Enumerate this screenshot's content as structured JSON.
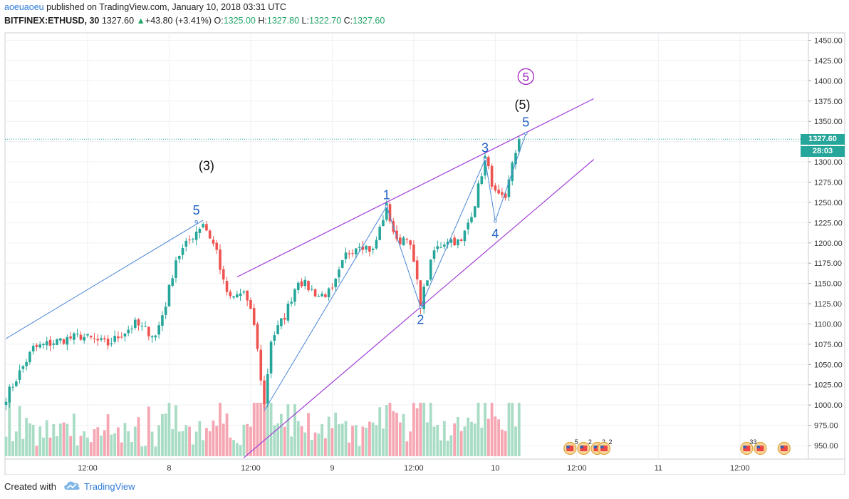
{
  "header": {
    "author": "aoeuaoeu",
    "published": "published on TradingView.com, January 10, 2018 03:31 UTC",
    "symbol": "BITFINEX:ETHUSD, 30",
    "last": "1327.60",
    "change": "+43.80 (+3.41%)",
    "open_label": "O:",
    "open": "1325.00",
    "high_label": "H:",
    "high": "1327.80",
    "low_label": "L:",
    "low": "1322.70",
    "close_label": "C:",
    "close": "1327.60"
  },
  "footer": {
    "created": "Created with",
    "brand": "TradingView"
  },
  "price_tag": {
    "value": "1327.60",
    "countdown": "28:03"
  },
  "colors": {
    "up": "#26a69a",
    "down": "#ef5350",
    "up_vol": "#a9dcc5",
    "down_vol": "#f5a6b2",
    "wave": "#4a86d4",
    "channel": "#a23fd8",
    "price_line": "#26a69a"
  },
  "chart_data": {
    "type": "candlestick",
    "y_ticks": [
      950,
      975,
      1000,
      1025,
      1050,
      1075,
      1100,
      1125,
      1150,
      1175,
      1200,
      1225,
      1250,
      1275,
      1300,
      1325,
      1350,
      1375,
      1400,
      1425,
      1450
    ],
    "y_range": [
      935,
      1460
    ],
    "x_ticks": [
      {
        "bar": 24,
        "label": "12:00"
      },
      {
        "bar": 48,
        "label": "8"
      },
      {
        "bar": 72,
        "label": "12:00"
      },
      {
        "bar": 96,
        "label": "9"
      },
      {
        "bar": 120,
        "label": "12:00"
      },
      {
        "bar": 144,
        "label": "10"
      },
      {
        "bar": 168,
        "label": "12:00"
      },
      {
        "bar": 192,
        "label": "11"
      },
      {
        "bar": 216,
        "label": "12:00"
      }
    ],
    "bars_shown": 235,
    "anchors": [
      [
        0,
        1010
      ],
      [
        8,
        1070
      ],
      [
        16,
        1080
      ],
      [
        22,
        1085
      ],
      [
        30,
        1075
      ],
      [
        38,
        1100
      ],
      [
        44,
        1085
      ],
      [
        47,
        1125
      ],
      [
        50,
        1180
      ],
      [
        56,
        1215
      ],
      [
        58,
        1225
      ],
      [
        62,
        1190
      ],
      [
        64,
        1150
      ],
      [
        66,
        1130
      ],
      [
        70,
        1140
      ],
      [
        73,
        1100
      ],
      [
        76,
        1000
      ],
      [
        78,
        1080
      ],
      [
        82,
        1110
      ],
      [
        86,
        1155
      ],
      [
        92,
        1135
      ],
      [
        96,
        1140
      ],
      [
        100,
        1185
      ],
      [
        104,
        1200
      ],
      [
        108,
        1190
      ],
      [
        112,
        1245
      ],
      [
        115,
        1200
      ],
      [
        118,
        1210
      ],
      [
        120,
        1175
      ],
      [
        122,
        1125
      ],
      [
        126,
        1190
      ],
      [
        130,
        1205
      ],
      [
        134,
        1200
      ],
      [
        138,
        1250
      ],
      [
        141,
        1305
      ],
      [
        144,
        1260
      ],
      [
        147,
        1250
      ],
      [
        149,
        1300
      ],
      [
        151,
        1328
      ]
    ],
    "volume_range": [
      0,
      100
    ],
    "waves": [
      {
        "label": "5",
        "bar": 56,
        "price": 1226
      },
      {
        "label": "1",
        "bar": 112,
        "price": 1245
      },
      {
        "label": "2",
        "bar": 122,
        "price": 1121
      },
      {
        "label": "3",
        "bar": 141,
        "price": 1303
      },
      {
        "label": "4",
        "bar": 144,
        "price": 1227
      },
      {
        "label": "5",
        "bar": 153,
        "price": 1335
      }
    ],
    "wave_path_main": [
      [
        76,
        993
      ],
      [
        112,
        1245
      ],
      [
        122,
        1121
      ],
      [
        141,
        1303
      ],
      [
        144,
        1227
      ],
      [
        153,
        1335
      ]
    ],
    "wave_path_left": [
      [
        0,
        1082
      ],
      [
        58,
        1228
      ]
    ],
    "degree_labels": [
      {
        "label": "(3)",
        "bar": 59,
        "price": 1290
      },
      {
        "label": "(5)",
        "bar": 152,
        "price": 1365
      },
      {
        "label": "5",
        "bar": 153,
        "price": 1400,
        "circled": true
      }
    ],
    "channel_upper": [
      [
        68,
        1158
      ],
      [
        173,
        1378
      ]
    ],
    "channel_lower": [
      [
        70,
        935
      ],
      [
        173,
        1303
      ]
    ],
    "event_markers": [
      {
        "bar": 166,
        "count": "5"
      },
      {
        "bar": 170,
        "count": "2"
      },
      {
        "bar": 174,
        "count": "2"
      },
      {
        "bar": 176,
        "count": "2"
      },
      {
        "bar": 218,
        "count": "33"
      },
      {
        "bar": 222,
        "count": ""
      },
      {
        "bar": 229,
        "count": ""
      }
    ]
  }
}
